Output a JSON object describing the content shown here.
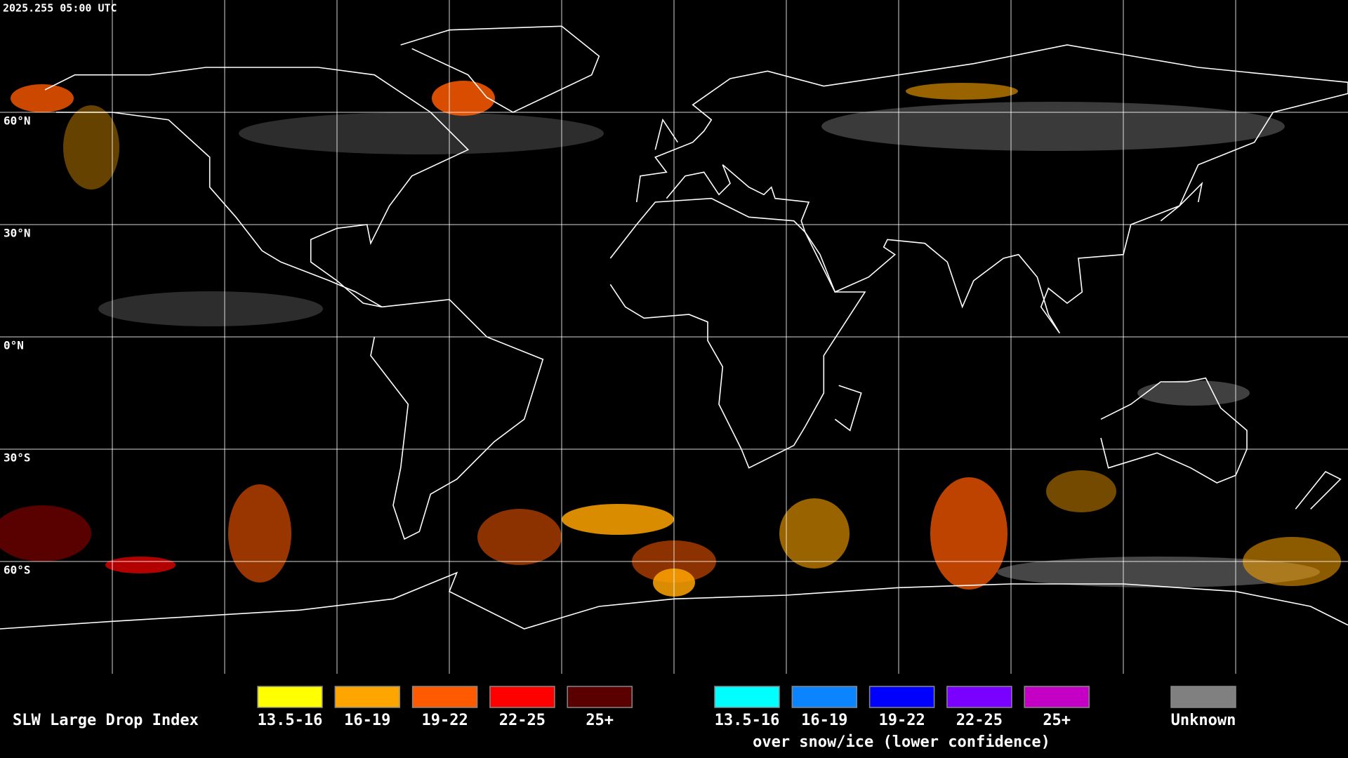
{
  "timestamp": "2025.255 05:00 UTC",
  "lat_labels": [
    "60°N",
    "30°N",
    "0°N",
    "30°S",
    "60°S"
  ],
  "legend": {
    "title": "SLW Large Drop Index",
    "items": [
      {
        "label": "13.5-16",
        "color": "#ffff00"
      },
      {
        "label": "16-19",
        "color": "#ffa500"
      },
      {
        "label": "19-22",
        "color": "#ff5a00"
      },
      {
        "label": "22-25",
        "color": "#ff0000"
      },
      {
        "label": "25+",
        "color": "#5a0000"
      }
    ],
    "snow_items": [
      {
        "label": "13.5-16",
        "color": "#00ffff"
      },
      {
        "label": "16-19",
        "color": "#0a84ff"
      },
      {
        "label": "19-22",
        "color": "#0000ff"
      },
      {
        "label": "22-25",
        "color": "#7a00ff"
      },
      {
        "label": "25+",
        "color": "#c400c4"
      }
    ],
    "snow_caption": "over snow/ice (lower confidence)",
    "unknown": {
      "label": "Unknown",
      "color": "#808080"
    }
  }
}
